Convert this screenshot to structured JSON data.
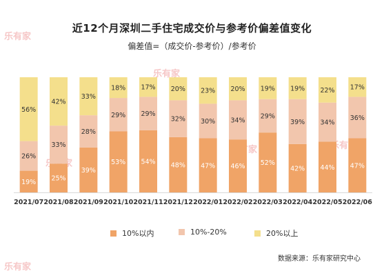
{
  "title": "近12个月深圳二手住宅成交价与参考价偏差值变化",
  "subtitle": "偏差值=（成交价-参考价）/参考价",
  "source": "数据来源：乐有家研究中心",
  "watermark": "乐有家",
  "colors": {
    "series_low": "#f0a467",
    "series_mid": "#f2c6ad",
    "series_high": "#f4df8c",
    "label_dark": "#ffffff",
    "label_light": "#333333"
  },
  "chart_data": {
    "type": "bar",
    "stacked": true,
    "percent": true,
    "categories": [
      "2021/07",
      "2021/08",
      "2021/09",
      "2021/10",
      "2021/11",
      "2021/12",
      "2022/01",
      "2022/02",
      "2022/03",
      "2022/04",
      "2022/05",
      "2022/06"
    ],
    "series": [
      {
        "name": "10%以内",
        "values": [
          19,
          25,
          39,
          53,
          54,
          48,
          47,
          46,
          52,
          42,
          44,
          47
        ]
      },
      {
        "name": "10%-20%",
        "values": [
          26,
          33,
          28,
          29,
          29,
          32,
          30,
          34,
          29,
          39,
          34,
          36
        ]
      },
      {
        "name": "20%以上",
        "values": [
          56,
          42,
          33,
          18,
          17,
          20,
          23,
          20,
          19,
          19,
          22,
          17
        ]
      }
    ],
    "ylim": [
      0,
      100
    ],
    "legend_position": "bottom",
    "grid": false
  }
}
